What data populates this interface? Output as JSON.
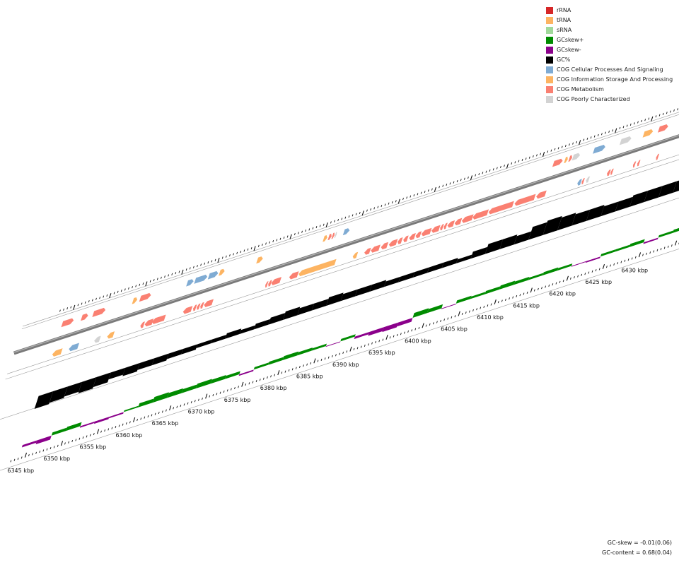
{
  "legend": [
    {
      "label": "rRNA",
      "color": "#d62728"
    },
    {
      "label": "tRNA",
      "color": "#fdb462"
    },
    {
      "label": "sRNA",
      "color": "#a1d99b"
    },
    {
      "label": "GCskew+",
      "color": "#008b00"
    },
    {
      "label": "GCskew-",
      "color": "#8b008b"
    },
    {
      "label": "GC%",
      "color": "#000000"
    },
    {
      "label": "COG Cellular Processes And Signaling",
      "color": "#7fabd3"
    },
    {
      "label": "COG Information Storage And Processing",
      "color": "#fdb462"
    },
    {
      "label": "COG Metabolism",
      "color": "#fa8072"
    },
    {
      "label": "COG Poorly Characterized",
      "color": "#d3d3d3"
    }
  ],
  "stats": {
    "gc_skew": "GC-skew = -0.01(0.06)",
    "gc_content": "GC-content = 0.68(0.04)"
  },
  "chart_data": {
    "type": "genome_map_arc",
    "position_unit": "kbp",
    "range_kbp": [
      6343,
      6437
    ],
    "tick_labels": [
      "6345 kbp",
      "6350 kbp",
      "6355 kbp",
      "6360 kbp",
      "6365 kbp",
      "6370 kbp",
      "6375 kbp",
      "6380 kbp",
      "6385 kbp",
      "6390 kbp",
      "6395 kbp",
      "6400 kbp",
      "6405 kbp",
      "6410 kbp",
      "6415 kbp",
      "6420 kbp",
      "6425 kbp",
      "6430 kbp"
    ],
    "tick_positions_kbp": [
      6345,
      6350,
      6355,
      6360,
      6365,
      6370,
      6375,
      6380,
      6385,
      6390,
      6395,
      6400,
      6405,
      6410,
      6415,
      6420,
      6425,
      6430
    ],
    "genes_forward": [
      {
        "start": 6344.0,
        "end": 6345.6,
        "cog": "metabolism"
      },
      {
        "start": 6346.7,
        "end": 6347.6,
        "cog": "metabolism"
      },
      {
        "start": 6348.3,
        "end": 6350.0,
        "cog": "metabolism"
      },
      {
        "start": 6353.8,
        "end": 6354.4,
        "cog": "information"
      },
      {
        "start": 6354.8,
        "end": 6356.3,
        "cog": "metabolism"
      },
      {
        "start": 6361.3,
        "end": 6362.2,
        "cog": "cellular"
      },
      {
        "start": 6362.4,
        "end": 6364.1,
        "cog": "cellular"
      },
      {
        "start": 6364.3,
        "end": 6365.6,
        "cog": "cellular"
      },
      {
        "start": 6365.8,
        "end": 6366.5,
        "cog": "information"
      },
      {
        "start": 6371.0,
        "end": 6371.8,
        "cog": "information"
      },
      {
        "start": 6380.2,
        "end": 6380.7,
        "cog": "information"
      },
      {
        "start": 6380.9,
        "end": 6381.3,
        "cog": "metabolism"
      },
      {
        "start": 6381.4,
        "end": 6381.7,
        "cog": "metabolism"
      },
      {
        "start": 6381.8,
        "end": 6382.0,
        "cog": "poorly"
      },
      {
        "start": 6383.0,
        "end": 6383.8,
        "cog": "cellular"
      },
      {
        "start": 6412.0,
        "end": 6413.3,
        "cog": "metabolism"
      },
      {
        "start": 6413.6,
        "end": 6414.0,
        "cog": "information"
      },
      {
        "start": 6414.2,
        "end": 6414.6,
        "cog": "metabolism"
      },
      {
        "start": 6414.7,
        "end": 6415.7,
        "cog": "poorly"
      },
      {
        "start": 6417.6,
        "end": 6419.2,
        "cog": "cellular"
      },
      {
        "start": 6421.3,
        "end": 6422.8,
        "cog": "poorly"
      },
      {
        "start": 6424.5,
        "end": 6425.8,
        "cog": "information"
      },
      {
        "start": 6426.6,
        "end": 6427.9,
        "cog": "metabolism"
      },
      {
        "start": 6431.4,
        "end": 6431.7,
        "cog": "poorly"
      }
    ],
    "genes_reverse": [
      {
        "start": 6344.0,
        "end": 6345.3,
        "cog": "information"
      },
      {
        "start": 6346.3,
        "end": 6347.6,
        "cog": "cellular"
      },
      {
        "start": 6349.8,
        "end": 6350.6,
        "cog": "poorly"
      },
      {
        "start": 6351.6,
        "end": 6352.5,
        "cog": "information"
      },
      {
        "start": 6356.2,
        "end": 6356.7,
        "cog": "metabolism"
      },
      {
        "start": 6356.8,
        "end": 6357.9,
        "cog": "metabolism"
      },
      {
        "start": 6357.8,
        "end": 6359.6,
        "cog": "metabolism"
      },
      {
        "start": 6362.1,
        "end": 6363.3,
        "cog": "metabolism"
      },
      {
        "start": 6363.5,
        "end": 6363.9,
        "cog": "metabolism"
      },
      {
        "start": 6364.0,
        "end": 6364.4,
        "cog": "metabolism"
      },
      {
        "start": 6364.5,
        "end": 6364.9,
        "cog": "metabolism"
      },
      {
        "start": 6365.0,
        "end": 6366.2,
        "cog": "metabolism"
      },
      {
        "start": 6373.5,
        "end": 6373.8,
        "cog": "metabolism"
      },
      {
        "start": 6373.9,
        "end": 6374.3,
        "cog": "metabolism"
      },
      {
        "start": 6374.3,
        "end": 6375.6,
        "cog": "metabolism"
      },
      {
        "start": 6376.8,
        "end": 6378.0,
        "cog": "metabolism"
      },
      {
        "start": 6378.1,
        "end": 6383.2,
        "cog": "information"
      },
      {
        "start": 6385.6,
        "end": 6386.2,
        "cog": "information"
      },
      {
        "start": 6387.2,
        "end": 6388.0,
        "cog": "metabolism"
      },
      {
        "start": 6388.1,
        "end": 6389.3,
        "cog": "metabolism"
      },
      {
        "start": 6389.5,
        "end": 6390.4,
        "cog": "metabolism"
      },
      {
        "start": 6390.6,
        "end": 6391.7,
        "cog": "metabolism"
      },
      {
        "start": 6391.8,
        "end": 6392.4,
        "cog": "metabolism"
      },
      {
        "start": 6392.6,
        "end": 6393.2,
        "cog": "metabolism"
      },
      {
        "start": 6393.4,
        "end": 6394.2,
        "cog": "metabolism"
      },
      {
        "start": 6394.3,
        "end": 6395.0,
        "cog": "metabolism"
      },
      {
        "start": 6395.1,
        "end": 6396.4,
        "cog": "metabolism"
      },
      {
        "start": 6396.5,
        "end": 6397.6,
        "cog": "metabolism"
      },
      {
        "start": 6397.7,
        "end": 6398.1,
        "cog": "metabolism"
      },
      {
        "start": 6398.2,
        "end": 6398.6,
        "cog": "metabolism"
      },
      {
        "start": 6398.7,
        "end": 6399.6,
        "cog": "metabolism"
      },
      {
        "start": 6399.7,
        "end": 6400.6,
        "cog": "metabolism"
      },
      {
        "start": 6400.7,
        "end": 6402.2,
        "cog": "metabolism"
      },
      {
        "start": 6402.2,
        "end": 6404.3,
        "cog": "metabolism"
      },
      {
        "start": 6404.4,
        "end": 6407.8,
        "cog": "metabolism"
      },
      {
        "start": 6408.0,
        "end": 6410.8,
        "cog": "metabolism"
      },
      {
        "start": 6411.0,
        "end": 6412.3,
        "cog": "metabolism"
      },
      {
        "start": 6416.7,
        "end": 6417.2,
        "cog": "cellular"
      },
      {
        "start": 6417.3,
        "end": 6417.6,
        "cog": "metabolism"
      },
      {
        "start": 6417.9,
        "end": 6418.3,
        "cog": "poorly"
      },
      {
        "start": 6420.8,
        "end": 6421.2,
        "cog": "metabolism"
      },
      {
        "start": 6421.3,
        "end": 6421.6,
        "cog": "metabolism"
      },
      {
        "start": 6424.4,
        "end": 6424.7,
        "cog": "metabolism"
      },
      {
        "start": 6425.0,
        "end": 6425.3,
        "cog": "metabolism"
      },
      {
        "start": 6427.6,
        "end": 6427.9,
        "cog": "metabolism"
      }
    ],
    "gc_content_percent": [
      {
        "kbp": 6344,
        "v": 62
      },
      {
        "kbp": 6346,
        "v": 63
      },
      {
        "kbp": 6348,
        "v": 64
      },
      {
        "kbp": 6350,
        "v": 63
      },
      {
        "kbp": 6352,
        "v": 64
      },
      {
        "kbp": 6354,
        "v": 66
      },
      {
        "kbp": 6356,
        "v": 65
      },
      {
        "kbp": 6358,
        "v": 66
      },
      {
        "kbp": 6360,
        "v": 66
      },
      {
        "kbp": 6362,
        "v": 67
      },
      {
        "kbp": 6364,
        "v": 67
      },
      {
        "kbp": 6366,
        "v": 68
      },
      {
        "kbp": 6368,
        "v": 68
      },
      {
        "kbp": 6370,
        "v": 69
      },
      {
        "kbp": 6372,
        "v": 68
      },
      {
        "kbp": 6374,
        "v": 69
      },
      {
        "kbp": 6376,
        "v": 70
      },
      {
        "kbp": 6378,
        "v": 71
      },
      {
        "kbp": 6380,
        "v": 70
      },
      {
        "kbp": 6382,
        "v": 70
      },
      {
        "kbp": 6384,
        "v": 71
      },
      {
        "kbp": 6386,
        "v": 70
      },
      {
        "kbp": 6388,
        "v": 70
      },
      {
        "kbp": 6390,
        "v": 70
      },
      {
        "kbp": 6392,
        "v": 69
      },
      {
        "kbp": 6394,
        "v": 69
      },
      {
        "kbp": 6396,
        "v": 69
      },
      {
        "kbp": 6398,
        "v": 69
      },
      {
        "kbp": 6400,
        "v": 69
      },
      {
        "kbp": 6402,
        "v": 68
      },
      {
        "kbp": 6404,
        "v": 70
      },
      {
        "kbp": 6406,
        "v": 72
      },
      {
        "kbp": 6408,
        "v": 72
      },
      {
        "kbp": 6410,
        "v": 71
      },
      {
        "kbp": 6412,
        "v": 74
      },
      {
        "kbp": 6414,
        "v": 75
      },
      {
        "kbp": 6416,
        "v": 74
      },
      {
        "kbp": 6418,
        "v": 73
      },
      {
        "kbp": 6420,
        "v": 73
      },
      {
        "kbp": 6422,
        "v": 72
      },
      {
        "kbp": 6424,
        "v": 72
      },
      {
        "kbp": 6426,
        "v": 73
      },
      {
        "kbp": 6428,
        "v": 73
      },
      {
        "kbp": 6430,
        "v": 73
      },
      {
        "kbp": 6432,
        "v": 73
      },
      {
        "kbp": 6434,
        "v": 72
      },
      {
        "kbp": 6436,
        "v": 73
      }
    ],
    "gc_skew": [
      {
        "kbp": 6344,
        "v": -0.03
      },
      {
        "kbp": 6346,
        "v": -0.05
      },
      {
        "kbp": 6348,
        "v": 0.04
      },
      {
        "kbp": 6350,
        "v": 0.05
      },
      {
        "kbp": 6352,
        "v": -0.02
      },
      {
        "kbp": 6354,
        "v": -0.03
      },
      {
        "kbp": 6356,
        "v": -0.02
      },
      {
        "kbp": 6358,
        "v": 0.02
      },
      {
        "kbp": 6360,
        "v": 0.05
      },
      {
        "kbp": 6362,
        "v": 0.07
      },
      {
        "kbp": 6364,
        "v": 0.06
      },
      {
        "kbp": 6366,
        "v": 0.05
      },
      {
        "kbp": 6368,
        "v": 0.06
      },
      {
        "kbp": 6370,
        "v": 0.05
      },
      {
        "kbp": 6372,
        "v": 0.04
      },
      {
        "kbp": 6374,
        "v": -0.02
      },
      {
        "kbp": 6376,
        "v": 0.03
      },
      {
        "kbp": 6378,
        "v": 0.04
      },
      {
        "kbp": 6380,
        "v": 0.05
      },
      {
        "kbp": 6382,
        "v": 0.04
      },
      {
        "kbp": 6384,
        "v": 0.03
      },
      {
        "kbp": 6386,
        "v": -0.01
      },
      {
        "kbp": 6388,
        "v": 0.03
      },
      {
        "kbp": 6390,
        "v": -0.03
      },
      {
        "kbp": 6392,
        "v": -0.05
      },
      {
        "kbp": 6394,
        "v": -0.06
      },
      {
        "kbp": 6396,
        "v": -0.05
      },
      {
        "kbp": 6398,
        "v": 0.06
      },
      {
        "kbp": 6400,
        "v": 0.05
      },
      {
        "kbp": 6402,
        "v": -0.01
      },
      {
        "kbp": 6404,
        "v": 0.04
      },
      {
        "kbp": 6406,
        "v": 0.03
      },
      {
        "kbp": 6408,
        "v": 0.04
      },
      {
        "kbp": 6410,
        "v": 0.05
      },
      {
        "kbp": 6412,
        "v": 0.04
      },
      {
        "kbp": 6414,
        "v": 0.03
      },
      {
        "kbp": 6416,
        "v": 0.04
      },
      {
        "kbp": 6418,
        "v": 0.03
      },
      {
        "kbp": 6420,
        "v": -0.01
      },
      {
        "kbp": 6422,
        "v": -0.02
      },
      {
        "kbp": 6424,
        "v": 0.03
      },
      {
        "kbp": 6426,
        "v": 0.03
      },
      {
        "kbp": 6428,
        "v": 0.04
      },
      {
        "kbp": 6430,
        "v": -0.02
      },
      {
        "kbp": 6432,
        "v": 0.03
      },
      {
        "kbp": 6434,
        "v": 0.04
      },
      {
        "kbp": 6436,
        "v": -0.01
      }
    ]
  }
}
